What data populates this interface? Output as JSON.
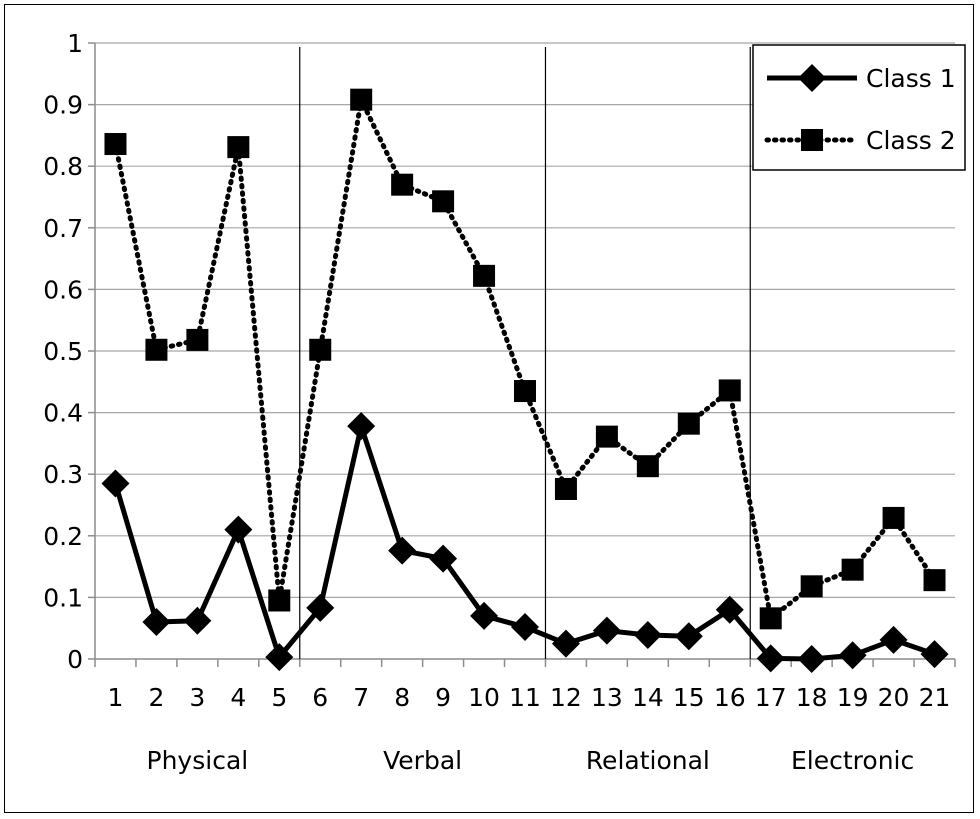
{
  "chart_data": {
    "type": "line",
    "title": "",
    "xlabel": "",
    "ylabel": "",
    "ylim": [
      0,
      1
    ],
    "yticks": [
      "0",
      "0.1",
      "0.2",
      "0.3",
      "0.4",
      "0.5",
      "0.6",
      "0.7",
      "0.8",
      "0.9",
      "1"
    ],
    "categories": [
      "1",
      "2",
      "3",
      "4",
      "5",
      "6",
      "7",
      "8",
      "9",
      "10",
      "11",
      "12",
      "13",
      "14",
      "15",
      "16",
      "17",
      "18",
      "19",
      "20",
      "21"
    ],
    "groups": [
      {
        "label": "Physical",
        "from": 1,
        "to": 5
      },
      {
        "label": "Verbal",
        "from": 6,
        "to": 11
      },
      {
        "label": "Relational",
        "from": 12,
        "to": 16
      },
      {
        "label": "Electronic",
        "from": 17,
        "to": 21
      }
    ],
    "grid": "horizontal",
    "legend_position": "top-right",
    "series": [
      {
        "name": "Class 1",
        "style": "solid",
        "marker": "diamond",
        "color": "#000000",
        "values": [
          0.285,
          0.06,
          0.062,
          0.21,
          0.003,
          0.083,
          0.378,
          0.176,
          0.163,
          0.07,
          0.052,
          0.025,
          0.046,
          0.039,
          0.037,
          0.08,
          0.001,
          0.0,
          0.006,
          0.031,
          0.008
        ]
      },
      {
        "name": "Class 2",
        "style": "dotted",
        "marker": "square",
        "color": "#000000",
        "values": [
          0.836,
          0.502,
          0.518,
          0.831,
          0.095,
          0.502,
          0.908,
          0.77,
          0.743,
          0.622,
          0.435,
          0.276,
          0.361,
          0.313,
          0.382,
          0.436,
          0.066,
          0.118,
          0.145,
          0.229,
          0.128
        ]
      }
    ]
  }
}
